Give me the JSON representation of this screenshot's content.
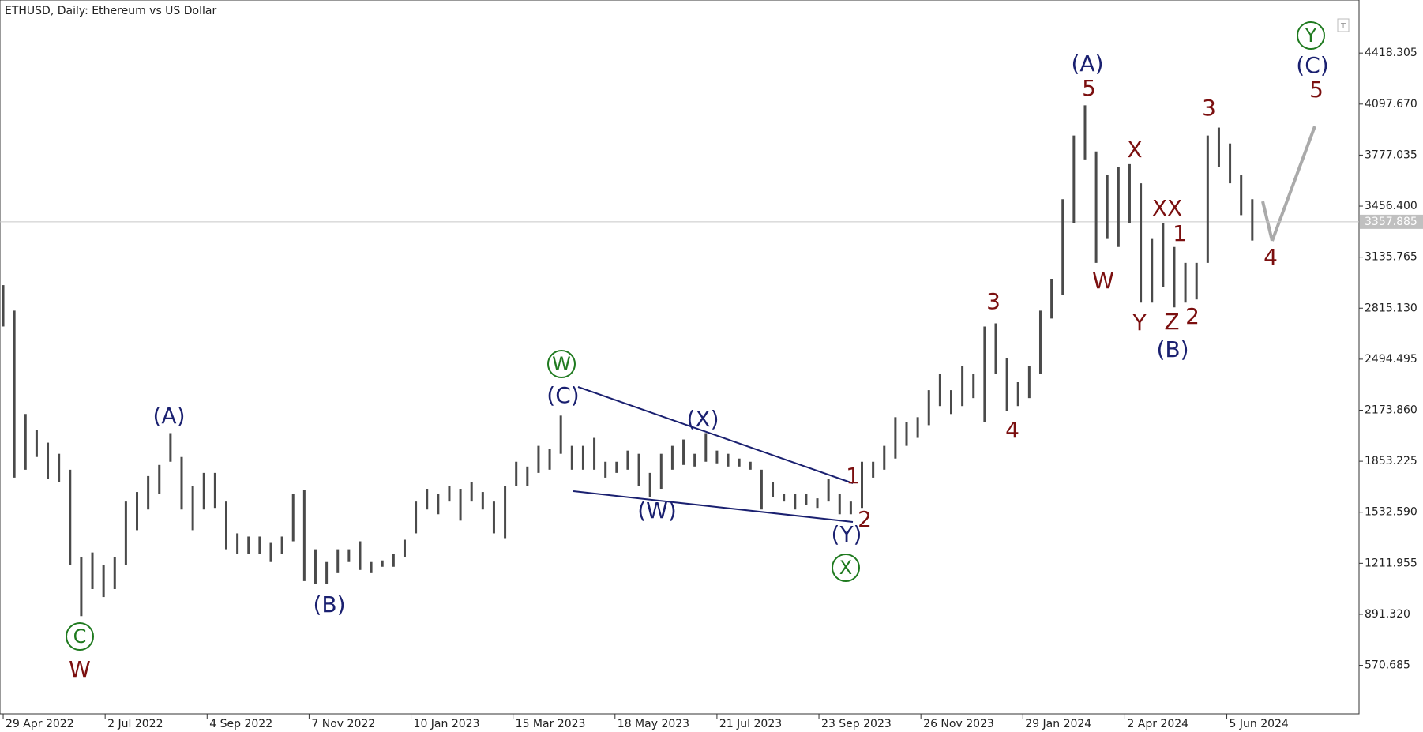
{
  "chart_data": {
    "type": "range",
    "title": "ETHUSD, Daily:  Ethereum vs US Dollar",
    "xlim": [
      "2022-04-27",
      "2024-08-27"
    ],
    "ylim": [
      265.9,
      4751.7
    ],
    "xticks": [
      {
        "value": "2022-04-29",
        "label": "29 Apr 2022"
      },
      {
        "value": "2022-07-02",
        "label": "2 Jul 2022"
      },
      {
        "value": "2022-09-04",
        "label": "4 Sep 2022"
      },
      {
        "value": "2022-11-07",
        "label": "7 Nov 2022"
      },
      {
        "value": "2023-01-10",
        "label": "10 Jan 2023"
      },
      {
        "value": "2023-03-15",
        "label": "15 Mar 2023"
      },
      {
        "value": "2023-05-18",
        "label": "18 May 2023"
      },
      {
        "value": "2023-07-21",
        "label": "21 Jul 2023"
      },
      {
        "value": "2023-09-23",
        "label": "23 Sep 2023"
      },
      {
        "value": "2023-11-26",
        "label": "26 Nov 2023"
      },
      {
        "value": "2024-01-29",
        "label": "29 Jan 2024"
      },
      {
        "value": "2024-04-02",
        "label": "2 Apr 2024"
      },
      {
        "value": "2024-06-05",
        "label": "5 Jun 2024"
      }
    ],
    "yticks": [
      570.685,
      {
        "value": 891.32,
        "label": "891.320"
      },
      1211.955,
      {
        "value": 1532.59,
        "label": "1532.590"
      },
      1853.225,
      {
        "value": 2173.86,
        "label": "2173.860"
      },
      2494.495,
      {
        "value": 2815.13,
        "label": "2815.130"
      },
      3135.765,
      {
        "value": 3456.4,
        "label": "3456.400"
      },
      3777.035,
      {
        "value": 4097.67,
        "label": "4097.670"
      },
      4418.305
    ],
    "last_price": 3357.885,
    "color": "#4a4a4a",
    "x": [
      "2022-04-29",
      "2022-05-06",
      "2022-05-13",
      "2022-05-20",
      "2022-05-27",
      "2022-06-03",
      "2022-06-10",
      "2022-06-17",
      "2022-06-24",
      "2022-07-01",
      "2022-07-08",
      "2022-07-15",
      "2022-07-22",
      "2022-07-29",
      "2022-08-05",
      "2022-08-12",
      "2022-08-19",
      "2022-08-26",
      "2022-09-02",
      "2022-09-09",
      "2022-09-16",
      "2022-09-23",
      "2022-09-30",
      "2022-10-07",
      "2022-10-14",
      "2022-10-21",
      "2022-10-28",
      "2022-11-04",
      "2022-11-11",
      "2022-11-18",
      "2022-11-25",
      "2022-12-02",
      "2022-12-09",
      "2022-12-16",
      "2022-12-23",
      "2022-12-30",
      "2023-01-06",
      "2023-01-13",
      "2023-01-20",
      "2023-01-27",
      "2023-02-03",
      "2023-02-10",
      "2023-02-17",
      "2023-02-24",
      "2023-03-03",
      "2023-03-10",
      "2023-03-17",
      "2023-03-24",
      "2023-03-31",
      "2023-04-07",
      "2023-04-14",
      "2023-04-21",
      "2023-04-28",
      "2023-05-05",
      "2023-05-12",
      "2023-05-19",
      "2023-05-26",
      "2023-06-02",
      "2023-06-09",
      "2023-06-16",
      "2023-06-23",
      "2023-06-30",
      "2023-07-07",
      "2023-07-14",
      "2023-07-21",
      "2023-07-28",
      "2023-08-04",
      "2023-08-11",
      "2023-08-18",
      "2023-08-25",
      "2023-09-01",
      "2023-09-08",
      "2023-09-15",
      "2023-09-22",
      "2023-09-29",
      "2023-10-06",
      "2023-10-13",
      "2023-10-20",
      "2023-10-27",
      "2023-11-03",
      "2023-11-10",
      "2023-11-17",
      "2023-11-24",
      "2023-12-01",
      "2023-12-08",
      "2023-12-15",
      "2023-12-22",
      "2023-12-29",
      "2024-01-05",
      "2024-01-12",
      "2024-01-19",
      "2024-01-26",
      "2024-02-02",
      "2024-02-09",
      "2024-02-16",
      "2024-02-23",
      "2024-03-01",
      "2024-03-08",
      "2024-03-15",
      "2024-03-22",
      "2024-03-29",
      "2024-04-05",
      "2024-04-12",
      "2024-04-19",
      "2024-04-26",
      "2024-05-03",
      "2024-05-10",
      "2024-05-17",
      "2024-05-24",
      "2024-05-31",
      "2024-06-07",
      "2024-06-14",
      "2024-06-21"
    ],
    "high": [
      2960,
      2800,
      2150,
      2050,
      1970,
      1900,
      1800,
      1250,
      1280,
      1200,
      1250,
      1600,
      1660,
      1760,
      1830,
      2030,
      1880,
      1700,
      1780,
      1780,
      1600,
      1400,
      1380,
      1380,
      1340,
      1380,
      1650,
      1670,
      1300,
      1220,
      1300,
      1300,
      1350,
      1220,
      1230,
      1270,
      1360,
      1600,
      1680,
      1650,
      1700,
      1680,
      1720,
      1660,
      1600,
      1700,
      1850,
      1820,
      1950,
      1930,
      2140,
      1950,
      1950,
      2000,
      1850,
      1850,
      1920,
      1900,
      1780,
      1900,
      1950,
      1990,
      1900,
      2030,
      1920,
      1900,
      1870,
      1850,
      1800,
      1720,
      1650,
      1650,
      1650,
      1620,
      1740,
      1650,
      1600,
      1850,
      1850,
      1950,
      2130,
      2100,
      2130,
      2300,
      2400,
      2300,
      2450,
      2400,
      2700,
      2720,
      2500,
      2350,
      2450,
      2800,
      3000,
      3500,
      3900,
      4090,
      3800,
      3650,
      3700,
      3720,
      3600,
      3250,
      3350,
      3200,
      3100,
      3100,
      3900,
      3950,
      3850,
      3650,
      3500
    ],
    "low": [
      2700,
      1750,
      1800,
      1880,
      1740,
      1720,
      1200,
      880,
      1050,
      1000,
      1050,
      1200,
      1420,
      1550,
      1650,
      1850,
      1550,
      1420,
      1550,
      1560,
      1300,
      1270,
      1270,
      1270,
      1220,
      1270,
      1350,
      1100,
      1080,
      1080,
      1150,
      1220,
      1170,
      1150,
      1190,
      1190,
      1250,
      1400,
      1550,
      1520,
      1600,
      1480,
      1600,
      1550,
      1400,
      1370,
      1700,
      1700,
      1780,
      1800,
      1900,
      1800,
      1800,
      1800,
      1750,
      1780,
      1800,
      1700,
      1630,
      1680,
      1800,
      1830,
      1820,
      1850,
      1840,
      1820,
      1820,
      1800,
      1550,
      1630,
      1600,
      1550,
      1580,
      1560,
      1600,
      1520,
      1520,
      1560,
      1750,
      1800,
      1870,
      1950,
      2000,
      2080,
      2200,
      2150,
      2200,
      2250,
      2100,
      2400,
      2170,
      2200,
      2250,
      2400,
      2750,
      2900,
      3350,
      3750,
      3100,
      3250,
      3200,
      3350,
      2850,
      2850,
      2950,
      2820,
      2850,
      2870,
      3100,
      3700,
      3600,
      3400,
      3240
    ],
    "annotations": [
      {
        "text": "C",
        "color": "#1f7a1f",
        "circled": true
      },
      {
        "text": "W",
        "color": "#7b0f0f",
        "circled": false
      },
      {
        "text": "(A)",
        "color": "#1a2070",
        "circled": false
      },
      {
        "text": "(B)",
        "color": "#1a2070",
        "circled": false
      },
      {
        "text": "W",
        "color": "#1f7a1f",
        "circled": true
      },
      {
        "text": "(C)",
        "color": "#1a2070",
        "circled": false
      },
      {
        "text": "(X)",
        "color": "#1a2070",
        "circled": false
      },
      {
        "text": "(W)",
        "color": "#1a2070",
        "circled": false
      },
      {
        "text": "1",
        "color": "#7b0f0f",
        "circled": false
      },
      {
        "text": "2",
        "color": "#7b0f0f",
        "circled": false
      },
      {
        "text": "(Y)",
        "color": "#1a2070",
        "circled": false
      },
      {
        "text": "X",
        "color": "#1f7a1f",
        "circled": true
      },
      {
        "text": "3",
        "color": "#7b0f0f",
        "circled": false
      },
      {
        "text": "4",
        "color": "#7b0f0f",
        "circled": false
      },
      {
        "text": "(A)",
        "color": "#1a2070",
        "circled": false
      },
      {
        "text": "5",
        "color": "#7b0f0f",
        "circled": false
      },
      {
        "text": "X",
        "color": "#7b0f0f",
        "circled": false
      },
      {
        "text": "W",
        "color": "#7b0f0f",
        "circled": false
      },
      {
        "text": "XX",
        "color": "#7b0f0f",
        "circled": false
      },
      {
        "text": "1",
        "color": "#7b0f0f",
        "circled": false
      },
      {
        "text": "Y",
        "color": "#7b0f0f",
        "circled": false
      },
      {
        "text": "Z",
        "color": "#7b0f0f",
        "circled": false
      },
      {
        "text": "2",
        "color": "#7b0f0f",
        "circled": false
      },
      {
        "text": "(B)",
        "color": "#1a2070",
        "circled": false
      },
      {
        "text": "3",
        "color": "#7b0f0f",
        "circled": false
      },
      {
        "text": "4",
        "color": "#7b0f0f",
        "circled": false
      },
      {
        "text": "Y",
        "color": "#1f7a1f",
        "circled": true
      },
      {
        "text": "(C)",
        "color": "#1a2070",
        "circled": false
      },
      {
        "text": "5",
        "color": "#7b0f0f",
        "circled": false
      }
    ]
  }
}
